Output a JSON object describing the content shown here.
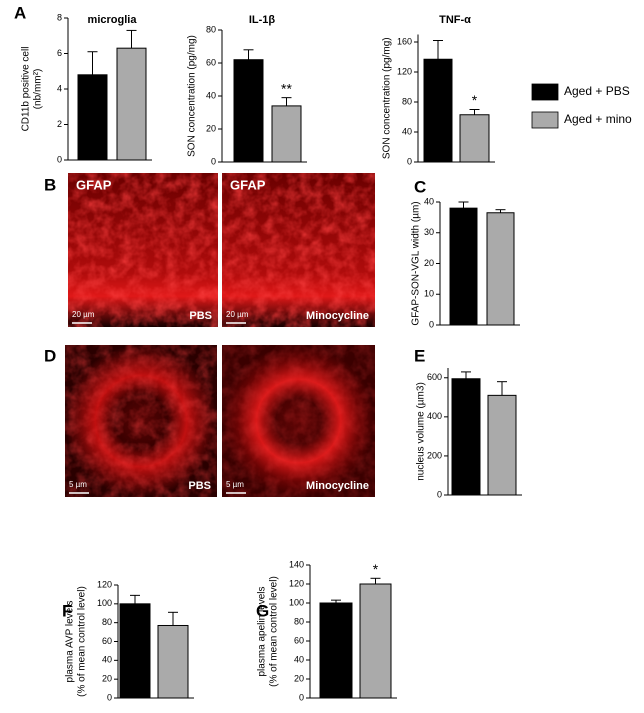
{
  "chart_data": [
    {
      "type": "bar",
      "title": "microglia",
      "ylabel": [
        "CD11b positive cell",
        "(nb/mm²)"
      ],
      "values": [
        4.8,
        6.3
      ],
      "errors": [
        1.3,
        1.0
      ],
      "colors": [
        "#000000",
        "#aaaaaa"
      ],
      "ylim": [
        0,
        8
      ],
      "yticks": [
        0,
        2,
        4,
        6,
        8
      ]
    },
    {
      "type": "bar",
      "title": "IL-1β",
      "ylabel": [
        "SON concentration (pg/mg)"
      ],
      "values": [
        62,
        34
      ],
      "errors": [
        6,
        5
      ],
      "colors": [
        "#000000",
        "#aaaaaa"
      ],
      "ylim": [
        0,
        80
      ],
      "yticks": [
        0,
        20,
        40,
        60,
        80
      ],
      "annotations": [
        {
          "bar": 1,
          "text": "**"
        }
      ]
    },
    {
      "type": "bar",
      "title": "TNF-α",
      "ylabel": [
        "SON concentration (pg/mg)"
      ],
      "values": [
        137,
        63
      ],
      "errors": [
        25,
        7
      ],
      "colors": [
        "#000000",
        "#aaaaaa"
      ],
      "ylim": [
        0,
        170
      ],
      "yticks": [
        0,
        40,
        80,
        120,
        160
      ],
      "annotations": [
        {
          "bar": 1,
          "text": "*"
        }
      ]
    },
    {
      "type": "bar",
      "ylabel": [
        "GFAP-SON-VGL width (µm)"
      ],
      "values": [
        38,
        36.5
      ],
      "errors": [
        2,
        1
      ],
      "colors": [
        "#000000",
        "#aaaaaa"
      ],
      "ylim": [
        0,
        40
      ],
      "yticks": [
        0,
        10,
        20,
        30,
        40
      ]
    },
    {
      "type": "bar",
      "ylabel": [
        "nucleus volume (µm3)"
      ],
      "values": [
        595,
        510
      ],
      "errors": [
        35,
        70
      ],
      "colors": [
        "#000000",
        "#aaaaaa"
      ],
      "ylim": [
        0,
        650
      ],
      "yticks": [
        0,
        200,
        400,
        600
      ]
    },
    {
      "type": "bar",
      "ylabel": [
        "plasma AVP levels",
        "(% of mean control level)"
      ],
      "values": [
        100,
        77
      ],
      "errors": [
        9,
        14
      ],
      "colors": [
        "#000000",
        "#aaaaaa"
      ],
      "ylim": [
        0,
        120
      ],
      "yticks": [
        0,
        20,
        40,
        60,
        80,
        100,
        120
      ]
    },
    {
      "type": "bar",
      "ylabel": [
        "plasma apelin levels",
        "(% of mean control level)"
      ],
      "values": [
        100,
        120
      ],
      "errors": [
        3,
        6
      ],
      "colors": [
        "#000000",
        "#aaaaaa"
      ],
      "ylim": [
        0,
        140
      ],
      "yticks": [
        0,
        20,
        40,
        60,
        80,
        100,
        120,
        140
      ],
      "annotations": [
        {
          "bar": 1,
          "text": "*"
        }
      ]
    }
  ],
  "legend": [
    {
      "name": "Aged + PBS",
      "color": "#000000"
    },
    {
      "name": "Aged + mino",
      "color": "#aaaaaa"
    }
  ],
  "panels": [
    "A",
    "B",
    "C",
    "D",
    "E",
    "F",
    "G"
  ],
  "images": [
    {
      "stain": "GFAP",
      "condition": "PBS",
      "scale": "20 µm"
    },
    {
      "stain": "GFAP",
      "condition": "Minocycline",
      "scale": "20 µm"
    },
    {
      "condition": "PBS",
      "scale": "5 µm"
    },
    {
      "condition": "Minocycline",
      "scale": "5 µm"
    }
  ]
}
